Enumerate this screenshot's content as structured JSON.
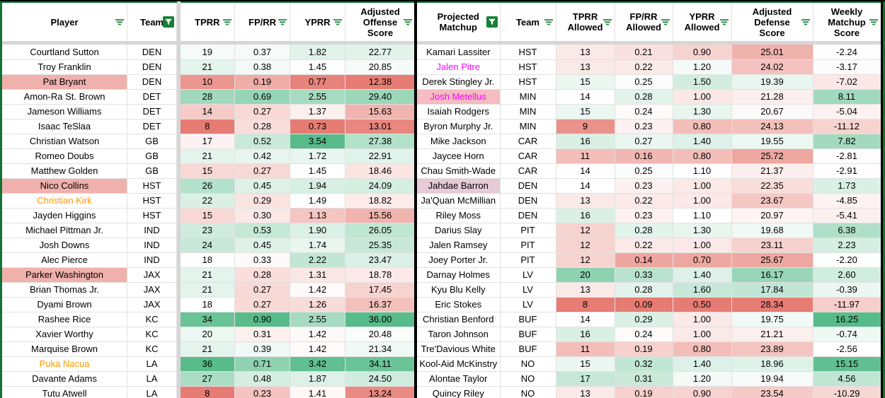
{
  "left_table": {
    "columns": [
      {
        "key": "player",
        "label": "Player",
        "icon": "lines"
      },
      {
        "key": "team",
        "label": "Team",
        "icon": "active"
      },
      {
        "key": "tprr",
        "label": "TPRR",
        "icon": "lines"
      },
      {
        "key": "fprr",
        "label": "FP/RR",
        "icon": "lines"
      },
      {
        "key": "yprr",
        "label": "YPRR",
        "icon": "lines"
      },
      {
        "key": "adj",
        "label": "Adjusted Offense Score",
        "icon": "lines"
      }
    ],
    "rows": [
      {
        "player": "Courtland Sutton",
        "team": "DEN",
        "tprr": "19",
        "fprr": "0.37",
        "yprr": "1.82",
        "adj": "22.77"
      },
      {
        "player": "Troy Franklin",
        "team": "DEN",
        "tprr": "21",
        "fprr": "0.38",
        "yprr": "1.45",
        "adj": "20.85"
      },
      {
        "player": "Pat Bryant",
        "team": "DEN",
        "tprr": "10",
        "fprr": "0.19",
        "yprr": "0.77",
        "adj": "12.38",
        "style": "salmon"
      },
      {
        "player": "Amon-Ra St. Brown",
        "team": "DET",
        "tprr": "28",
        "fprr": "0.69",
        "yprr": "2.55",
        "adj": "29.40"
      },
      {
        "player": "Jameson Williams",
        "team": "DET",
        "tprr": "14",
        "fprr": "0.27",
        "yprr": "1.37",
        "adj": "15.63"
      },
      {
        "player": "Isaac TeSlaa",
        "team": "DET",
        "tprr": "8",
        "fprr": "0.28",
        "yprr": "0.73",
        "adj": "13.01"
      },
      {
        "player": "Christian Watson",
        "team": "GB",
        "tprr": "17",
        "fprr": "0.52",
        "yprr": "3.54",
        "adj": "27.38"
      },
      {
        "player": "Romeo Doubs",
        "team": "GB",
        "tprr": "21",
        "fprr": "0.42",
        "yprr": "1.72",
        "adj": "22.91"
      },
      {
        "player": "Matthew Golden",
        "team": "GB",
        "tprr": "15",
        "fprr": "0.27",
        "yprr": "1.45",
        "adj": "18.46"
      },
      {
        "player": "Nico Collins",
        "team": "HST",
        "tprr": "26",
        "fprr": "0.45",
        "yprr": "1.94",
        "adj": "24.09",
        "style": "salmon"
      },
      {
        "player": "Christian Kirk",
        "team": "HST",
        "tprr": "22",
        "fprr": "0.29",
        "yprr": "1.49",
        "adj": "18.82",
        "style": "orange"
      },
      {
        "player": "Jayden Higgins",
        "team": "HST",
        "tprr": "15",
        "fprr": "0.30",
        "yprr": "1.13",
        "adj": "15.56"
      },
      {
        "player": "Michael Pittman Jr.",
        "team": "IND",
        "tprr": "23",
        "fprr": "0.53",
        "yprr": "1.90",
        "adj": "26.05"
      },
      {
        "player": "Josh Downs",
        "team": "IND",
        "tprr": "24",
        "fprr": "0.45",
        "yprr": "1.74",
        "adj": "25.35"
      },
      {
        "player": "Alec Pierce",
        "team": "IND",
        "tprr": "18",
        "fprr": "0.33",
        "yprr": "2.22",
        "adj": "23.47"
      },
      {
        "player": "Parker Washington",
        "team": "JAX",
        "tprr": "21",
        "fprr": "0.28",
        "yprr": "1.31",
        "adj": "18.78",
        "style": "salmon"
      },
      {
        "player": "Brian Thomas Jr.",
        "team": "JAX",
        "tprr": "21",
        "fprr": "0.27",
        "yprr": "1.42",
        "adj": "17.45"
      },
      {
        "player": "Dyami Brown",
        "team": "JAX",
        "tprr": "18",
        "fprr": "0.27",
        "yprr": "1.26",
        "adj": "16.37"
      },
      {
        "player": "Rashee Rice",
        "team": "KC",
        "tprr": "34",
        "fprr": "0.90",
        "yprr": "2.55",
        "adj": "36.00"
      },
      {
        "player": "Xavier Worthy",
        "team": "KC",
        "tprr": "20",
        "fprr": "0.31",
        "yprr": "1.42",
        "adj": "20.48"
      },
      {
        "player": "Marquise Brown",
        "team": "KC",
        "tprr": "21",
        "fprr": "0.39",
        "yprr": "1.42",
        "adj": "21.34"
      },
      {
        "player": "Puka Nacua",
        "team": "LA",
        "tprr": "36",
        "fprr": "0.71",
        "yprr": "3.42",
        "adj": "34.11",
        "style": "orange"
      },
      {
        "player": "Davante Adams",
        "team": "LA",
        "tprr": "27",
        "fprr": "0.48",
        "yprr": "1.87",
        "adj": "24.50"
      },
      {
        "player": "Tutu Atwell",
        "team": "LA",
        "tprr": "8",
        "fprr": "0.23",
        "yprr": "1.41",
        "adj": "13.24"
      }
    ]
  },
  "right_table": {
    "columns": [
      {
        "key": "name",
        "label": "Projected Matchup",
        "icon": "active"
      },
      {
        "key": "team",
        "label": "Team",
        "icon": "lines"
      },
      {
        "key": "tprr",
        "label": "TPRR Allowed",
        "icon": "lines"
      },
      {
        "key": "fprr",
        "label": "FP/RR Allowed",
        "icon": "lines"
      },
      {
        "key": "yprr",
        "label": "YPRR Allowed",
        "icon": "lines"
      },
      {
        "key": "adj",
        "label": "Adjusted Defense Score",
        "icon": "lines"
      },
      {
        "key": "weekly",
        "label": "Weekly Matchup Score",
        "icon": "lines"
      }
    ],
    "rows": [
      {
        "name": "Kamari Lassiter",
        "team": "HST",
        "tprr": "13",
        "fprr": "0.21",
        "yprr": "0.90",
        "adj": "25.01",
        "weekly": "-2.24"
      },
      {
        "name": "Jalen Pitre",
        "team": "HST",
        "tprr": "13",
        "fprr": "0.22",
        "yprr": "1.20",
        "adj": "24.02",
        "weekly": "-3.17",
        "style": "magenta"
      },
      {
        "name": "Derek Stingley Jr.",
        "team": "HST",
        "tprr": "15",
        "fprr": "0.25",
        "yprr": "1.50",
        "adj": "19.39",
        "weekly": "-7.02"
      },
      {
        "name": "Josh Metellus",
        "team": "MIN",
        "tprr": "14",
        "fprr": "0.28",
        "yprr": "1.00",
        "adj": "21.28",
        "weekly": "8.11",
        "style": "magenta_on_pink"
      },
      {
        "name": "Isaiah Rodgers",
        "team": "MIN",
        "tprr": "15",
        "fprr": "0.24",
        "yprr": "1.30",
        "adj": "20.67",
        "weekly": "-5.04"
      },
      {
        "name": "Byron Murphy Jr.",
        "team": "MIN",
        "tprr": "9",
        "fprr": "0.23",
        "yprr": "0.80",
        "adj": "24.13",
        "weekly": "-11.12"
      },
      {
        "name": "Mike Jackson",
        "team": "CAR",
        "tprr": "16",
        "fprr": "0.27",
        "yprr": "1.40",
        "adj": "19.55",
        "weekly": "7.82"
      },
      {
        "name": "Jaycee Horn",
        "team": "CAR",
        "tprr": "11",
        "fprr": "0.16",
        "yprr": "0.80",
        "adj": "25.72",
        "weekly": "-2.81"
      },
      {
        "name": "Chau Smith-Wade",
        "team": "CAR",
        "tprr": "14",
        "fprr": "0.25",
        "yprr": "1.10",
        "adj": "21.37",
        "weekly": "-2.91"
      },
      {
        "name": "Jahdae Barron",
        "team": "DEN",
        "tprr": "14",
        "fprr": "0.23",
        "yprr": "1.00",
        "adj": "22.35",
        "weekly": "1.73",
        "style": "mauve"
      },
      {
        "name": "Ja'Quan McMillian",
        "team": "DEN",
        "tprr": "13",
        "fprr": "0.22",
        "yprr": "1.00",
        "adj": "23.67",
        "weekly": "-4.85"
      },
      {
        "name": "Riley Moss",
        "team": "DEN",
        "tprr": "16",
        "fprr": "0.23",
        "yprr": "1.10",
        "adj": "20.97",
        "weekly": "-5.41"
      },
      {
        "name": "Darius Slay",
        "team": "PIT",
        "tprr": "12",
        "fprr": "0.28",
        "yprr": "1.30",
        "adj": "19.68",
        "weekly": "6.38"
      },
      {
        "name": "Jalen Ramsey",
        "team": "PIT",
        "tprr": "12",
        "fprr": "0.22",
        "yprr": "1.00",
        "adj": "23.11",
        "weekly": "2.23"
      },
      {
        "name": "Joey Porter Jr.",
        "team": "PIT",
        "tprr": "12",
        "fprr": "0.14",
        "yprr": "0.70",
        "adj": "25.67",
        "weekly": "-2.20"
      },
      {
        "name": "Darnay Holmes",
        "team": "LV",
        "tprr": "20",
        "fprr": "0.33",
        "yprr": "1.40",
        "adj": "16.17",
        "weekly": "2.60"
      },
      {
        "name": "Kyu Blu Kelly",
        "team": "LV",
        "tprr": "13",
        "fprr": "0.28",
        "yprr": "1.60",
        "adj": "17.84",
        "weekly": "-0.39"
      },
      {
        "name": "Eric Stokes",
        "team": "LV",
        "tprr": "8",
        "fprr": "0.09",
        "yprr": "0.50",
        "adj": "28.34",
        "weekly": "-11.97"
      },
      {
        "name": "Christian Benford",
        "team": "BUF",
        "tprr": "14",
        "fprr": "0.29",
        "yprr": "1.00",
        "adj": "19.75",
        "weekly": "16.25"
      },
      {
        "name": "Taron Johnson",
        "team": "BUF",
        "tprr": "16",
        "fprr": "0.24",
        "yprr": "1.00",
        "adj": "21.21",
        "weekly": "-0.74"
      },
      {
        "name": "Tre'Davious White",
        "team": "BUF",
        "tprr": "11",
        "fprr": "0.19",
        "yprr": "0.80",
        "adj": "23.89",
        "weekly": "-2.56"
      },
      {
        "name": "Kool-Aid McKinstry",
        "team": "NO",
        "tprr": "15",
        "fprr": "0.32",
        "yprr": "1.40",
        "adj": "18.96",
        "weekly": "15.15"
      },
      {
        "name": "Alontae Taylor",
        "team": "NO",
        "tprr": "17",
        "fprr": "0.31",
        "yprr": "1.20",
        "adj": "19.94",
        "weekly": "4.56"
      },
      {
        "name": "Quincy Riley",
        "team": "NO",
        "tprr": "13",
        "fprr": "0.19",
        "yprr": "0.90",
        "adj": "23.54",
        "weekly": "-10.29"
      }
    ]
  },
  "formatting": {
    "gradient_red": "#e67c73",
    "gradient_green": "#57bb8a",
    "gradient_white": "#ffffff",
    "icon_green": "#188038",
    "border_green": "#137333",
    "divider_grey": "#d6d6d6",
    "cell_border": "#e1e1e1",
    "separator_black": "#000000",
    "name_styles": {
      "salmon": {
        "bg": "#f0b0ac"
      },
      "orange": {
        "color": "#ff9900"
      },
      "magenta": {
        "color": "#ff00ff"
      },
      "magenta_on_pink": {
        "color": "#ff00ff",
        "bg": "#f5bcc1"
      },
      "mauve": {
        "bg": "#e6cad7"
      }
    },
    "gradients": {
      "left": {
        "tprr": {
          "min": 8,
          "mid": 18,
          "max": 36
        },
        "fprr": {
          "min": 0.1,
          "mid": 0.34,
          "max": 0.9
        },
        "yprr": {
          "min": 0.73,
          "mid": 1.45,
          "max": 3.54
        },
        "adj": {
          "min": 12.38,
          "mid": 20,
          "max": 36
        }
      },
      "right": {
        "tprr": {
          "min": 8,
          "mid": 14,
          "max": 23
        },
        "fprr": {
          "min": 0.09,
          "mid": 0.245,
          "max": 0.45
        },
        "yprr": {
          "min": 0.5,
          "mid": 1.1,
          "max": 2.6
        },
        "adj": {
          "min": 13.5,
          "mid": 20.3,
          "max": 28.34,
          "reverse": true
        },
        "weekly": {
          "min": -28,
          "mid": -2.5,
          "max": 16.25
        }
      }
    }
  }
}
